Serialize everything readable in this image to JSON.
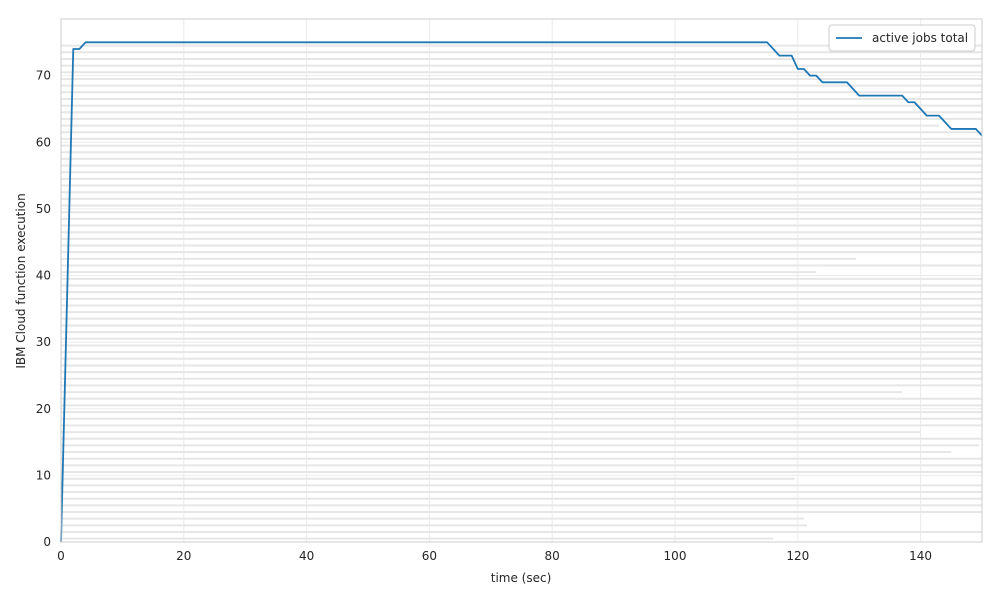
{
  "chart_data": {
    "type": "line",
    "title": "",
    "xlabel": "time (sec)",
    "ylabel": "IBM Cloud function execution",
    "xlim": [
      0,
      150
    ],
    "ylim": [
      0,
      78.5
    ],
    "x_ticks": [
      0,
      20,
      40,
      60,
      80,
      100,
      120,
      140
    ],
    "y_ticks": [
      0,
      10,
      20,
      30,
      40,
      50,
      60,
      70
    ],
    "grid": true,
    "legend_position": "top-right",
    "colors": {
      "line": "#1f77b4",
      "job_bars": "#e6e6e6",
      "grid": "#ebebeb",
      "frame": "#cccccc"
    },
    "series": [
      {
        "name": "active jobs total",
        "x": [
          0,
          2,
          3,
          4,
          115,
          117,
          119,
          120,
          121,
          122,
          123,
          124,
          128,
          130,
          137,
          138,
          139,
          141,
          143,
          145,
          149,
          150
        ],
        "y": [
          0,
          74,
          74,
          75,
          75,
          73,
          73,
          71,
          71,
          70,
          70,
          69,
          69,
          67,
          67,
          66,
          66,
          64,
          64,
          62,
          62,
          61
        ]
      }
    ],
    "jobs": {
      "start_sec": 0,
      "end_sec": [
        116,
        150,
        121.5,
        121,
        150,
        150,
        150,
        150,
        150,
        119.5,
        150,
        150,
        150,
        145,
        149.5,
        150,
        140,
        150,
        150,
        150,
        150,
        150,
        137,
        150,
        150,
        150,
        150,
        150,
        150,
        150,
        150,
        150,
        150,
        150,
        150,
        150,
        150,
        150,
        150,
        150,
        123,
        150,
        129.5,
        150,
        150,
        150,
        150,
        150,
        150,
        150,
        150,
        150,
        150,
        150,
        150,
        150,
        150,
        150,
        150,
        150,
        150,
        150,
        143,
        150,
        150,
        150,
        150,
        150,
        150,
        150,
        150,
        150,
        150,
        150,
        150
      ]
    }
  }
}
